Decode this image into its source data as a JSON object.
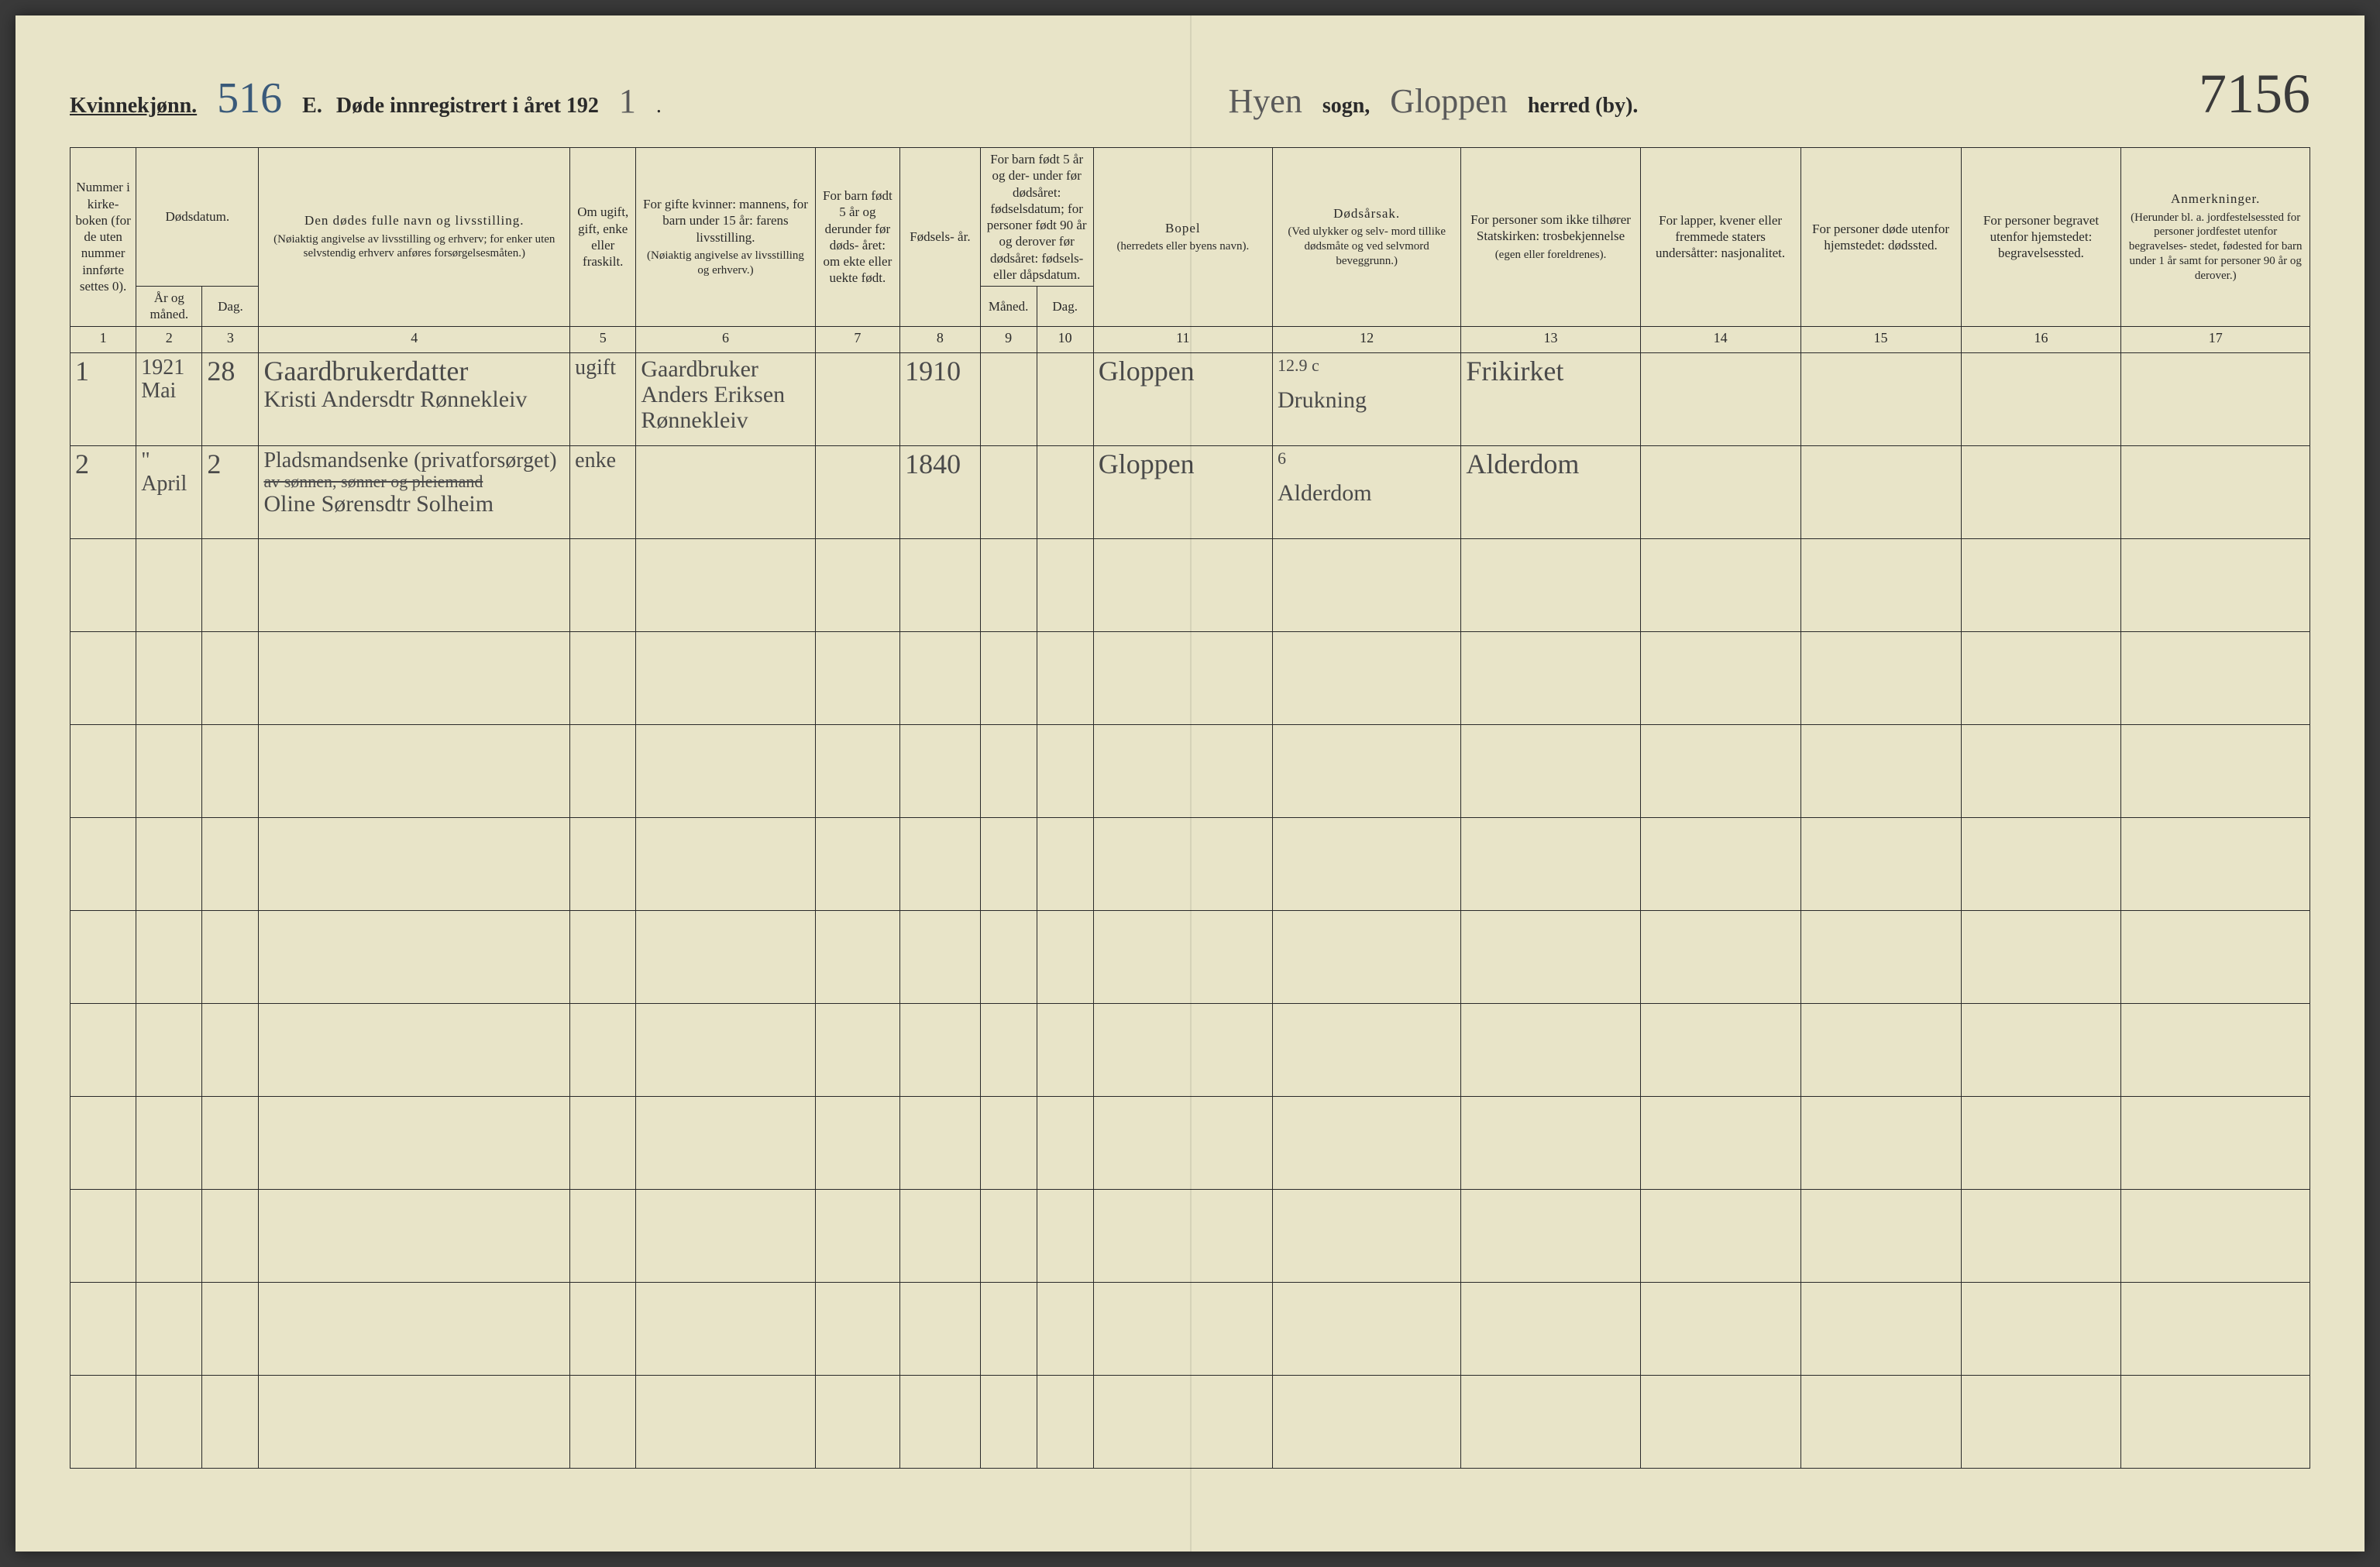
{
  "header": {
    "gender": "Kvinnekjønn.",
    "serial": "516",
    "title_prefix": "E.",
    "title_main": "Døde innregistrert i året 192",
    "year_suffix": "1",
    "period": ".",
    "sogn_value": "Hyen",
    "sogn_label": "sogn,",
    "herred_value": "Gloppen",
    "herred_label": "herred (by).",
    "page_no": "7156"
  },
  "columns": {
    "c1": "Nummer i kirke- boken (for de uten nummer innførte settes 0).",
    "c2": "Dødsdatum.",
    "c2a": "År og måned.",
    "c2b": "Dag.",
    "c4": "Den dødes fulle navn og livsstilling.",
    "c4s": "(Nøiaktig angivelse av livsstilling og erhverv; for enker uten selvstendig erhverv anføres forsørgelsesmåten.)",
    "c5": "Om ugift, gift, enke eller fraskilt.",
    "c6": "For gifte kvinner: mannens, for barn under 15 år: farens livsstilling.",
    "c6s": "(Nøiaktig angivelse av livsstilling og erhverv.)",
    "c7": "For barn født 5 år og derunder før døds- året: om ekte eller uekte født.",
    "c8": "Fødsels- år.",
    "c910": "For barn født 5 år og der- under før dødsåret: fødselsdatum; for personer født 90 år og derover før dødsåret: fødsels- eller dåpsdatum.",
    "c9": "Måned.",
    "c10": "Dag.",
    "c11": "Bopel",
    "c11s": "(herredets eller byens navn).",
    "c12": "Dødsårsak.",
    "c12s": "(Ved ulykker og selv- mord tillike dødsmåte og ved selvmord beveggrunn.)",
    "c13": "For personer som ikke tilhører Statskirken: trosbekjennelse",
    "c13s": "(egen eller foreldrenes).",
    "c14": "For lapper, kvener eller fremmede staters undersåtter: nasjonalitet.",
    "c15": "For personer døde utenfor hjemstedet: dødssted.",
    "c16": "For personer begravet utenfor hjemstedet: begravelsessted.",
    "c17": "Anmerkninger.",
    "c17s": "(Herunder bl. a. jordfestelsessted for personer jordfestet utenfor begravelses- stedet, fødested for barn under 1 år samt for personer 90 år og derover.)"
  },
  "colnums": [
    "1",
    "2",
    "3",
    "4",
    "5",
    "6",
    "7",
    "8",
    "9",
    "10",
    "11",
    "12",
    "13",
    "14",
    "15",
    "16",
    "17"
  ],
  "rows": [
    {
      "n": "1",
      "year_month": "1921 Mai",
      "day": "28",
      "name_a": "Gaardbrukerdatter",
      "name_b": "Kristi Andersdtr Rønnekleiv",
      "civil": "ugift",
      "spouse_a": "Gaardbruker",
      "spouse_b": "Anders Eriksen Rønnekleiv",
      "c7": "",
      "birth": "1910",
      "c9": "",
      "c10": "",
      "residence": "Gloppen",
      "cause": "Drukning",
      "cause_note": "12.9 c",
      "c13": "Frikirket",
      "c14": "",
      "c15": "",
      "c16": "",
      "c17": ""
    },
    {
      "n": "2",
      "year_month": "\" April",
      "day": "2",
      "name_a": "Pladsmandsenke (privatforsørget)",
      "name_strike": "av sønnen, sønner og pleiemand",
      "name_b": "Oline Sørensdtr Solheim",
      "civil": "enke",
      "spouse_a": "",
      "spouse_b": "",
      "c7": "",
      "birth": "1840",
      "c9": "",
      "c10": "",
      "residence": "Gloppen",
      "cause": "Alderdom",
      "cause_note": "6",
      "c13": "Alderdom",
      "c14": "",
      "c15": "",
      "c16": "",
      "c17": ""
    }
  ],
  "empty_rows": 10,
  "colors": {
    "paper": "#e8e4c8",
    "ink": "#2a2a2a",
    "hand_blue": "#3a5a7a",
    "hand_gray": "#4a4a4a"
  }
}
